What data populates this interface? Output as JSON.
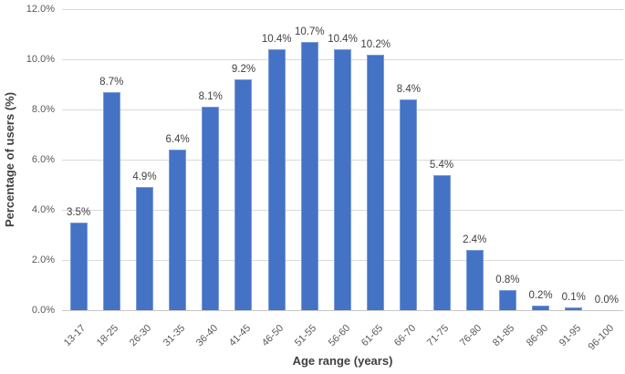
{
  "chart_data": {
    "type": "bar",
    "title": "",
    "xlabel": "Age range (years)",
    "ylabel": "Percentage of users (%)",
    "categories": [
      "13-17",
      "18-25",
      "26-30",
      "31-35",
      "36-40",
      "41-45",
      "46-50",
      "51-55",
      "56-60",
      "61-65",
      "66-70",
      "71-75",
      "76-80",
      "81-85",
      "86-90",
      "91-95",
      "96-100"
    ],
    "values": [
      3.5,
      8.7,
      4.9,
      6.4,
      8.1,
      9.2,
      10.4,
      10.7,
      10.4,
      10.2,
      8.4,
      5.4,
      2.4,
      0.8,
      0.2,
      0.1,
      0.0
    ],
    "data_labels": [
      "3.5%",
      "8.7%",
      "4.9%",
      "6.4%",
      "8.1%",
      "9.2%",
      "10.4%",
      "10.7%",
      "10.4%",
      "10.2%",
      "8.4%",
      "5.4%",
      "2.4%",
      "0.8%",
      "0.2%",
      "0.1%",
      "0.0%"
    ],
    "y_ticks": [
      "0.0%",
      "2.0%",
      "4.0%",
      "6.0%",
      "8.0%",
      "10.0%",
      "12.0%"
    ],
    "y_tick_values": [
      0,
      2,
      4,
      6,
      8,
      10,
      12
    ],
    "ylim": [
      0,
      12
    ],
    "grid": true,
    "legend": "none",
    "bar_color": "#4472C4",
    "bar_border_color": "#7A9BD8",
    "gridline_color": "#D9D9D9",
    "axis_line_color": "#C8C8C8",
    "tick_label_color": "#595959",
    "data_label_color": "#404040",
    "axis_title_color": "#404040",
    "background": "#FFFFFF"
  }
}
